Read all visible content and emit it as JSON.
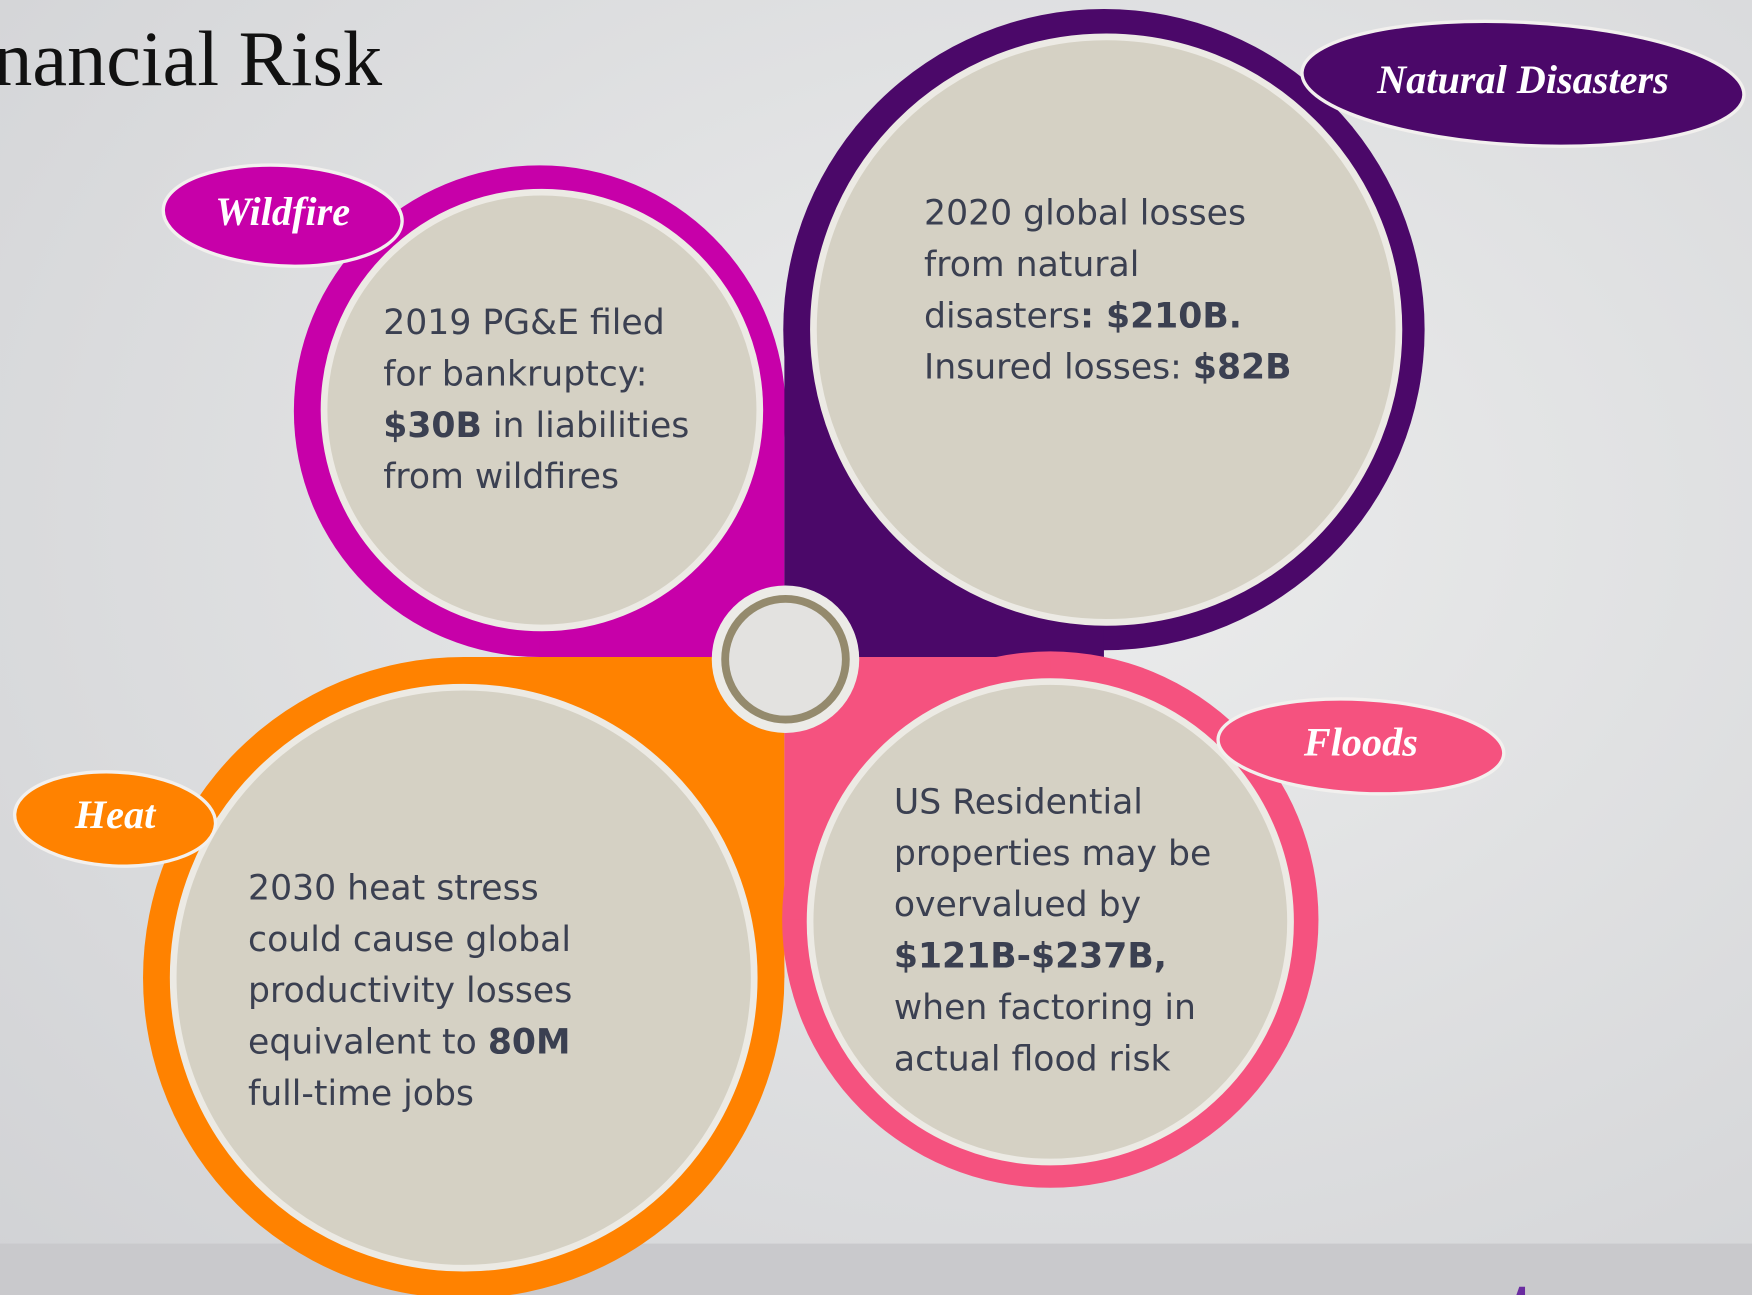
{
  "title": "nancial Risk",
  "panels": [
    {
      "label": "Wildfire",
      "color": "#c700a9",
      "lines": [
        [
          {
            "text": "2019 PG&E filed"
          }
        ],
        [
          {
            "text": "for bankruptcy:"
          }
        ],
        [
          {
            "text": "$30B",
            "bold": true
          },
          {
            "text": " in liabilities"
          }
        ],
        [
          {
            "text": "from wildfires"
          }
        ]
      ]
    },
    {
      "label": "Natural Disasters",
      "color": "#4b0869",
      "lines": [
        [
          {
            "text": "2020 global losses"
          }
        ],
        [
          {
            "text": "from natural"
          }
        ],
        [
          {
            "text": "disasters"
          },
          {
            "text": ": $210B.",
            "bold": true
          }
        ],
        [
          {
            "text": "Insured losses: "
          },
          {
            "text": "$82B",
            "bold": true
          }
        ]
      ]
    },
    {
      "label": "Heat",
      "color": "#ff8200",
      "lines": [
        [
          {
            "text": "2030 heat stress"
          }
        ],
        [
          {
            "text": "could cause global"
          }
        ],
        [
          {
            "text": "productivity losses"
          }
        ],
        [
          {
            "text": "equivalent to "
          },
          {
            "text": "80M",
            "bold": true
          }
        ],
        [
          {
            "text": "full-time jobs"
          }
        ]
      ]
    },
    {
      "label": "Floods",
      "color": "#f5527f",
      "lines": [
        [
          {
            "text": "US Residential"
          }
        ],
        [
          {
            "text": "properties may be"
          }
        ],
        [
          {
            "text": "overvalued by"
          }
        ],
        [
          {
            "text": "$121B-$237B,",
            "bold": true
          }
        ],
        [
          {
            "text": "when factoring in"
          }
        ],
        [
          {
            "text": "actual flood risk"
          }
        ]
      ]
    }
  ],
  "logo": "wtw"
}
